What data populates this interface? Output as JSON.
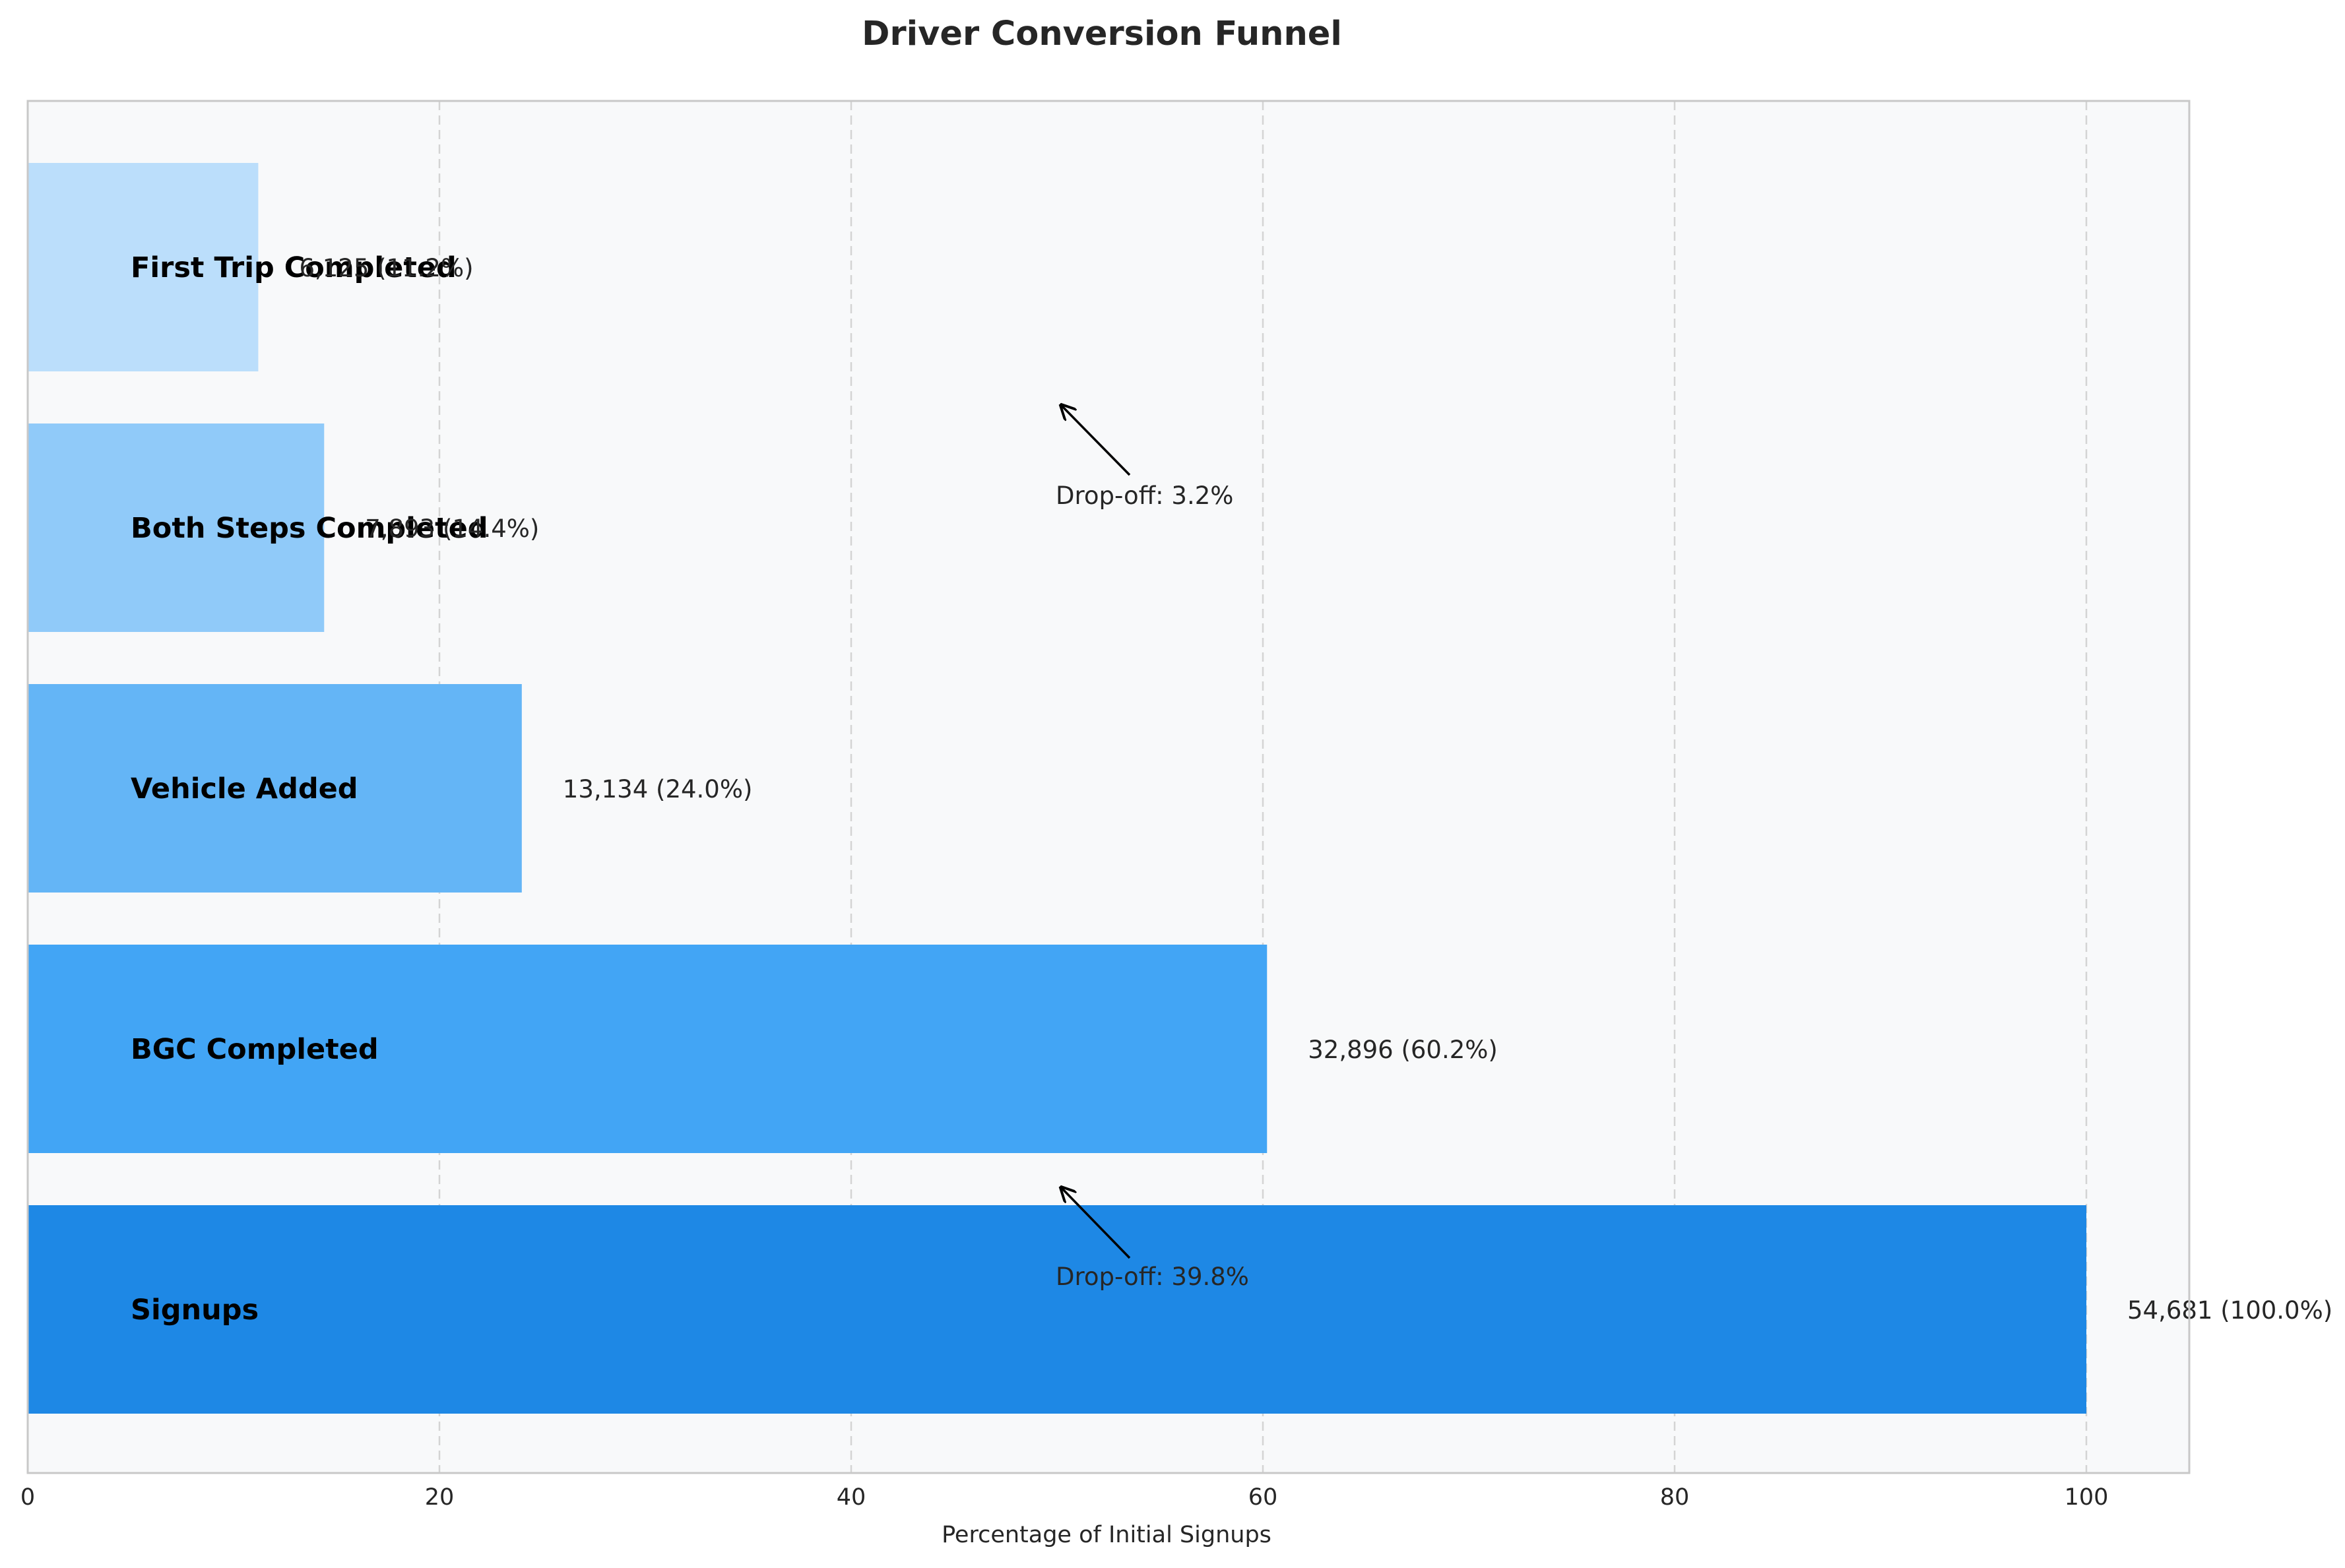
{
  "chart_data": {
    "type": "bar",
    "orientation": "horizontal",
    "title": "Driver Conversion Funnel",
    "xlabel": "Percentage of Initial Signups",
    "ylabel": "",
    "xlim": [
      0,
      105
    ],
    "xticks": [
      0,
      20,
      40,
      60,
      80,
      100
    ],
    "grid": "x-dashed",
    "categories": [
      "Signups",
      "BGC Completed",
      "Vehicle Added",
      "Both Steps Completed",
      "First Trip Completed"
    ],
    "values": [
      100.0,
      60.2,
      24.0,
      14.4,
      11.2
    ],
    "counts": [
      "54,681",
      "32,896",
      "13,134",
      "7,893",
      "6,125"
    ],
    "value_labels": [
      "54,681 (100.0%)",
      "32,896 (60.2%)",
      "13,134 (24.0%)",
      "7,893 (14.4%)",
      "6,125 (11.2%)"
    ],
    "colors": [
      "#1e88e5",
      "#42a5f5",
      "#64b5f6",
      "#90caf9",
      "#bbdefb"
    ],
    "annotations": [
      {
        "text": "Drop-off: 39.8%",
        "x": 50,
        "between": [
          "Signups",
          "BGC Completed"
        ]
      },
      {
        "text": "Drop-off: 3.2%",
        "x": 50,
        "between": [
          "Both Steps Completed",
          "First Trip Completed"
        ]
      }
    ],
    "plot_background": "#f8f9fa"
  }
}
